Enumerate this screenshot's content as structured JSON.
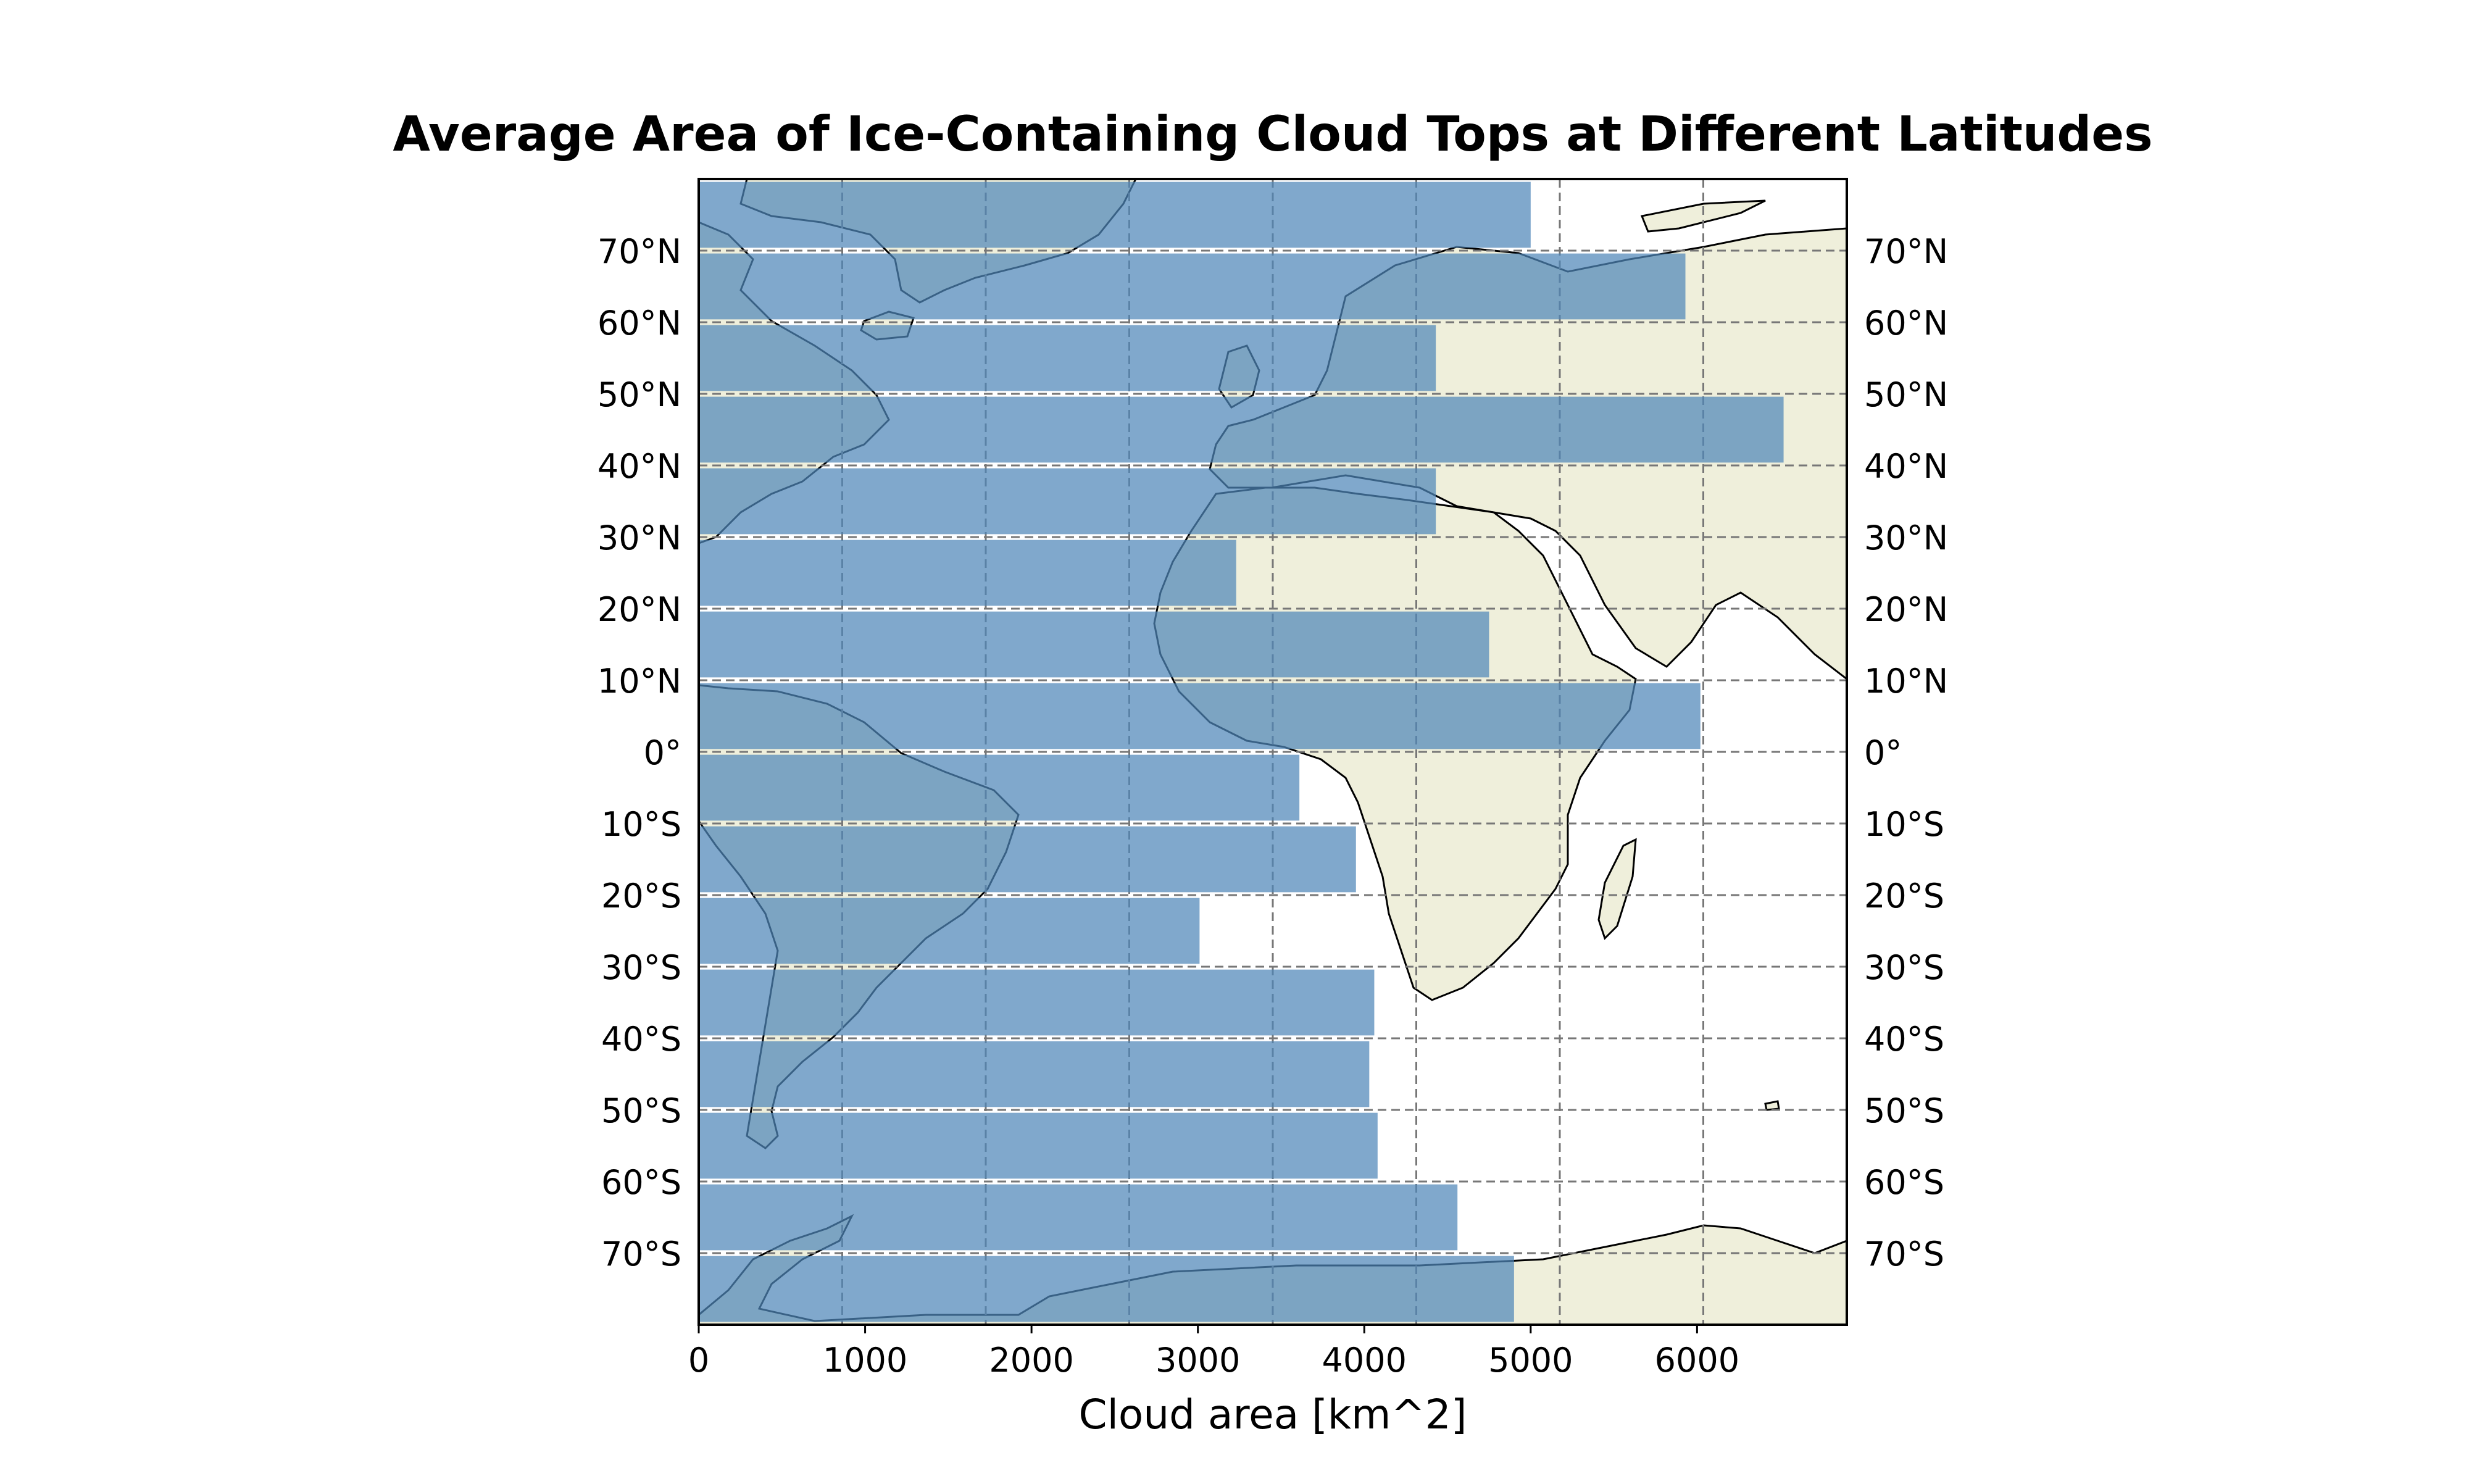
{
  "chart_data": {
    "type": "bar",
    "orientation": "horizontal",
    "title": "Average Area of Ice-Containing Cloud Tops at Different Latitudes",
    "xlabel": "Cloud area [km^2]",
    "ylabel": "",
    "xlim": [
      0,
      6900
    ],
    "ylim": [
      -80,
      80
    ],
    "x_ticks": [
      0,
      1000,
      2000,
      3000,
      4000,
      5000,
      6000
    ],
    "y_ticks": [
      {
        "lat": 70,
        "label": "70°N"
      },
      {
        "lat": 60,
        "label": "60°N"
      },
      {
        "lat": 50,
        "label": "50°N"
      },
      {
        "lat": 40,
        "label": "40°N"
      },
      {
        "lat": 30,
        "label": "30°N"
      },
      {
        "lat": 20,
        "label": "20°N"
      },
      {
        "lat": 10,
        "label": "10°N"
      },
      {
        "lat": 0,
        "label": "0°"
      },
      {
        "lat": -10,
        "label": "10°S"
      },
      {
        "lat": -20,
        "label": "20°S"
      },
      {
        "lat": -30,
        "label": "30°S"
      },
      {
        "lat": -40,
        "label": "40°S"
      },
      {
        "lat": -50,
        "label": "50°S"
      },
      {
        "lat": -60,
        "label": "60°S"
      },
      {
        "lat": -70,
        "label": "70°S"
      }
    ],
    "categories": [
      75,
      65,
      55,
      45,
      35,
      25,
      15,
      5,
      -5,
      -15,
      -25,
      -35,
      -45,
      -55,
      -65,
      -75
    ],
    "values": [
      5000,
      5930,
      4430,
      6520,
      4430,
      3230,
      4750,
      6020,
      3610,
      3950,
      3010,
      4060,
      4030,
      4080,
      4560,
      4900
    ],
    "bar_color": "#4f86b9",
    "background": "map of Atlantic Ocean, Africa, Europe and South America",
    "land_color": "#efefdb",
    "grid": true,
    "grid_style": "dashed",
    "legend": "none"
  }
}
